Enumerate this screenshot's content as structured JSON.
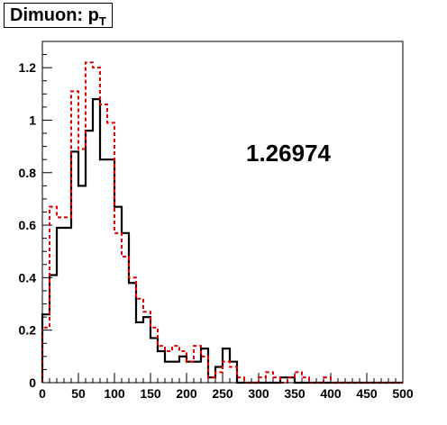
{
  "chart_data": {
    "type": "histogram",
    "title": "Dimuon: p",
    "title_subscript": "T",
    "annotation": "1.26974",
    "xlim": [
      0,
      500
    ],
    "ylim": [
      0,
      1.3
    ],
    "x_ticks": [
      0,
      50,
      100,
      150,
      200,
      250,
      300,
      350,
      400,
      450,
      500
    ],
    "y_ticks": [
      0,
      0.2,
      0.4,
      0.6,
      0.8,
      1,
      1.2
    ],
    "y_tick_labels": [
      "0",
      "0.2",
      "0.4",
      "0.6",
      "0.8",
      "1",
      "1.2"
    ],
    "bin_width": 10,
    "grid": false,
    "series": [
      {
        "style": "solid",
        "color": "#000000",
        "values": [
          0.26,
          0.41,
          0.59,
          0.59,
          0.88,
          0.75,
          0.96,
          1.08,
          0.85,
          0.85,
          0.67,
          0.57,
          0.38,
          0.23,
          0.25,
          0.17,
          0.12,
          0.08,
          0.08,
          0.1,
          0.08,
          0.08,
          0.13,
          0.02,
          0.06,
          0.13,
          0.08,
          0.0,
          0.0,
          0.0,
          0.0,
          0.0,
          0.0,
          0.02,
          0.02,
          0.0,
          0.0,
          0.0,
          0.0,
          0.0,
          0.0,
          0.0,
          0.0,
          0.0,
          0.0,
          0.0,
          0.0,
          0.0,
          0.0,
          0.0
        ]
      },
      {
        "style": "dashed",
        "color": "#e00000",
        "values": [
          0.21,
          0.67,
          0.63,
          0.63,
          1.11,
          0.89,
          1.22,
          1.2,
          1.06,
          0.99,
          0.57,
          0.48,
          0.4,
          0.32,
          0.27,
          0.21,
          0.14,
          0.12,
          0.14,
          0.12,
          0.08,
          0.14,
          0.1,
          0.02,
          0.04,
          0.08,
          0.06,
          0.02,
          0.0,
          0.0,
          0.02,
          0.04,
          0.02,
          0.0,
          0.02,
          0.04,
          0.02,
          0.0,
          0.0,
          0.02,
          0.0,
          0.0,
          0.0,
          0.0,
          0.0,
          0.0,
          0.0,
          0.0,
          0.0,
          0.0
        ]
      }
    ]
  }
}
